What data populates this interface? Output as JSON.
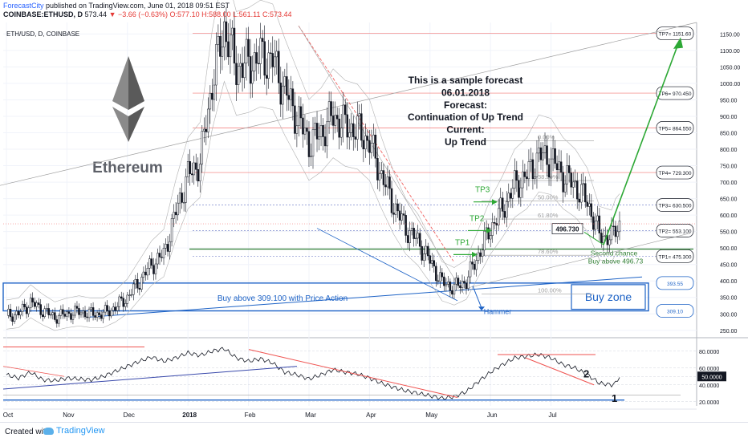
{
  "header": {
    "line1_brand": "ForecastCity",
    "line1_rest": " published on TradingView.com, June 01, 2018 09:51 EST",
    "symbol": "COINBASE:ETHUSD, D",
    "price": "573.44",
    "change": "▼ −3.66 (−0.63%)",
    "ohlc": "O:577.10 H:588.00 L:561.11 C:573.44"
  },
  "footer": {
    "created": "Created with",
    "brand": "TradingView"
  },
  "chart_data": {
    "type": "candlestick",
    "instrument_label": "ETH/USD, D, COINBASE",
    "logo_text": "Ethereum",
    "forecast_lines": [
      "This is a sample forecast",
      "06.01.2018",
      "Forecast:",
      "Continuation of Up Trend",
      "Current:",
      "Up Trend"
    ],
    "x_tick_labels": [
      "Oct",
      "Nov",
      "Dec",
      "2018",
      "Feb",
      "Mar",
      "Apr",
      "May",
      "Jun",
      "Jul"
    ],
    "y_ticks": [
      250,
      300,
      350,
      400,
      450,
      500,
      550,
      600,
      650,
      700,
      750,
      800,
      850,
      900,
      950,
      1000,
      1050,
      1100,
      1150
    ],
    "y_tick_labels": [
      "250.00",
      "300.00",
      "350.00",
      "400.00",
      "450.00",
      "500.00",
      "550.00",
      "600.00",
      "650.00",
      "700.00",
      "750.00",
      "800.00",
      "850.00",
      "900.00",
      "950.00",
      "1000.00",
      "1050.00",
      "1100.00",
      "1150.00"
    ],
    "ylim": [
      230,
      1185
    ],
    "targets": [
      {
        "label": "TP7= 1151.60",
        "value": 1151.6
      },
      {
        "label": "TP6= 970.450",
        "value": 970.45
      },
      {
        "label": "TP5= 864.550",
        "value": 864.55
      },
      {
        "label": "TP4= 729.300",
        "value": 729.3
      },
      {
        "label": "TP3= 630.500",
        "value": 630.5
      },
      {
        "label": "TP2= 553.100",
        "value": 553.1
      },
      {
        "label": "TP1= 475.300",
        "value": 475.3
      }
    ],
    "buy_zone": {
      "top": 393.55,
      "bottom": 309.1,
      "top_label": "393.55",
      "bottom_label": "309.10",
      "title": "Buy zone",
      "note": "Buy above 309.100 with Price Action"
    },
    "fib_levels": [
      {
        "label": "0.00%",
        "value": 826
      },
      {
        "label": "38.20%",
        "value": 705
      },
      {
        "label": "50.00%",
        "value": 643
      },
      {
        "label": "61.80%",
        "value": 588
      },
      {
        "label": "78.60%",
        "value": 478
      },
      {
        "label": "100.00%",
        "value": 360
      }
    ],
    "second_chance": {
      "value": 496.73,
      "price_label": "496.730",
      "line1": "Second chance",
      "line2": "Buy above 496.73"
    },
    "tp_arrow_labels": [
      "TP1",
      "TP2",
      "TP3"
    ],
    "hammer_label": "Hammer",
    "close_path": [
      [
        0,
        295
      ],
      [
        6,
        300
      ],
      [
        12,
        335
      ],
      [
        18,
        310
      ],
      [
        24,
        290
      ],
      [
        30,
        300
      ],
      [
        36,
        306
      ],
      [
        42,
        300
      ],
      [
        48,
        300
      ],
      [
        54,
        320
      ],
      [
        60,
        350
      ],
      [
        66,
        400
      ],
      [
        72,
        450
      ],
      [
        78,
        480
      ],
      [
        84,
        610
      ],
      [
        90,
        720
      ],
      [
        96,
        760
      ],
      [
        102,
        1000
      ],
      [
        108,
        1170
      ],
      [
        114,
        1050
      ],
      [
        120,
        1060
      ],
      [
        126,
        1080
      ],
      [
        132,
        1070
      ],
      [
        138,
        980
      ],
      [
        144,
        900
      ],
      [
        150,
        820
      ],
      [
        156,
        850
      ],
      [
        162,
        900
      ],
      [
        168,
        870
      ],
      [
        174,
        860
      ],
      [
        180,
        820
      ],
      [
        186,
        720
      ],
      [
        192,
        630
      ],
      [
        198,
        560
      ],
      [
        204,
        520
      ],
      [
        210,
        460
      ],
      [
        216,
        395
      ],
      [
        222,
        380
      ],
      [
        228,
        400
      ],
      [
        234,
        480
      ],
      [
        240,
        560
      ],
      [
        246,
        620
      ],
      [
        252,
        690
      ],
      [
        258,
        720
      ],
      [
        264,
        780
      ],
      [
        270,
        770
      ],
      [
        276,
        720
      ],
      [
        282,
        690
      ],
      [
        288,
        640
      ],
      [
        294,
        540
      ],
      [
        300,
        530
      ],
      [
        302,
        560
      ],
      [
        304,
        573
      ]
    ],
    "oscillator": {
      "yticks": [
        20,
        40,
        50,
        60,
        80
      ],
      "ytick_labels": [
        "20.0000",
        "40.0000",
        "50.0000",
        "60.0000",
        "80.0000"
      ],
      "current_label": "50.0000",
      "ylim": [
        15,
        95
      ],
      "marks": [
        "1",
        "2"
      ],
      "path": [
        [
          0,
          52
        ],
        [
          6,
          48
        ],
        [
          12,
          55
        ],
        [
          18,
          46
        ],
        [
          24,
          45
        ],
        [
          30,
          48
        ],
        [
          36,
          47
        ],
        [
          42,
          46
        ],
        [
          48,
          50
        ],
        [
          54,
          56
        ],
        [
          60,
          62
        ],
        [
          66,
          68
        ],
        [
          72,
          73
        ],
        [
          78,
          68
        ],
        [
          84,
          72
        ],
        [
          90,
          78
        ],
        [
          96,
          75
        ],
        [
          102,
          80
        ],
        [
          108,
          83
        ],
        [
          114,
          72
        ],
        [
          120,
          68
        ],
        [
          126,
          71
        ],
        [
          132,
          66
        ],
        [
          138,
          55
        ],
        [
          144,
          52
        ],
        [
          150,
          47
        ],
        [
          156,
          52
        ],
        [
          162,
          58
        ],
        [
          168,
          55
        ],
        [
          174,
          53
        ],
        [
          180,
          48
        ],
        [
          186,
          42
        ],
        [
          192,
          37
        ],
        [
          198,
          33
        ],
        [
          204,
          30
        ],
        [
          210,
          27
        ],
        [
          216,
          24
        ],
        [
          222,
          26
        ],
        [
          228,
          32
        ],
        [
          234,
          44
        ],
        [
          240,
          55
        ],
        [
          246,
          64
        ],
        [
          252,
          72
        ],
        [
          258,
          74
        ],
        [
          264,
          76
        ],
        [
          270,
          72
        ],
        [
          276,
          64
        ],
        [
          282,
          60
        ],
        [
          288,
          52
        ],
        [
          294,
          42
        ],
        [
          300,
          40
        ],
        [
          302,
          42
        ],
        [
          304,
          50
        ]
      ]
    }
  }
}
